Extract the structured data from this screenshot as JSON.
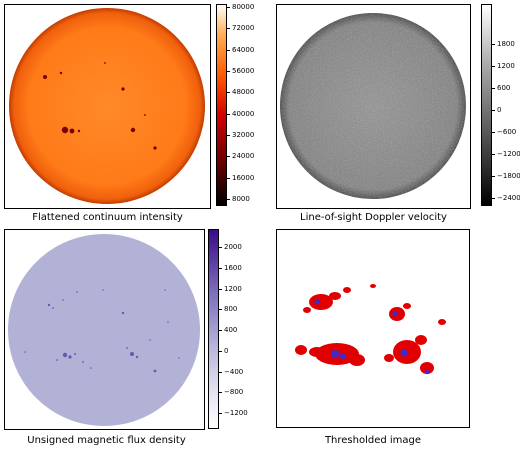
{
  "panels": [
    {
      "caption": "Flattened continuum intensity",
      "colorbar": {
        "colors": [
          "#000000",
          "#7a0000",
          "#d40000",
          "#ff5a00",
          "#ffae55",
          "#ffffff"
        ],
        "ticks": [
          "80000",
          "72000",
          "64000",
          "56000",
          "48000",
          "40000",
          "32000",
          "24000",
          "16000",
          "8000"
        ]
      },
      "disk_color": "#ff7b1a",
      "disk_edge": "#c23c00"
    },
    {
      "caption": "Line-of-sight Doppler velocity",
      "colorbar": {
        "colors": [
          "#000000",
          "#555555",
          "#aaaaaa",
          "#ffffff"
        ],
        "ticks": [
          "1800",
          "1200",
          "600",
          "0",
          "−600",
          "−1200",
          "−1800",
          "−2400"
        ]
      },
      "disk_color": "#8a8a8a",
      "disk_edge": "#444444"
    },
    {
      "caption": "Unsigned magnetic flux density",
      "colorbar": {
        "colors": [
          "#ffffff",
          "#b8b8dc",
          "#7a6ab8",
          "#3a0a8a"
        ],
        "ticks": [
          "2000",
          "1600",
          "1200",
          "800",
          "400",
          "0",
          "−400",
          "−800",
          "−1200"
        ]
      },
      "disk_color": "#b2b2d6",
      "disk_edge": "#a5a5cf"
    },
    {
      "caption": "Thresholded image",
      "disk_color": "#ffffff",
      "accent_red": "#e00000",
      "accent_blue": "#3a2ad0"
    }
  ]
}
